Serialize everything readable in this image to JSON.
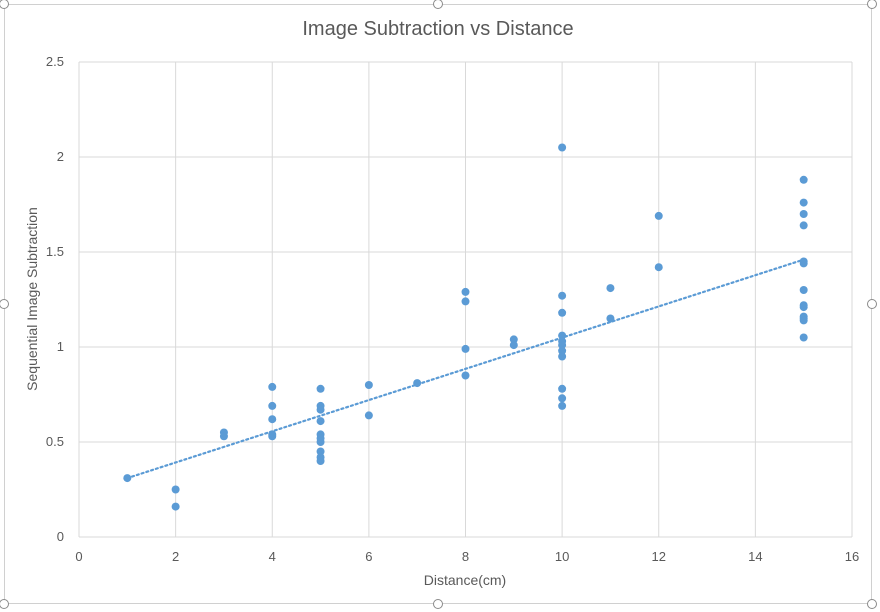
{
  "chart_data": {
    "type": "scatter",
    "title": "Image Subtraction vs Distance",
    "xlabel": "Distance(cm)",
    "ylabel": "Sequential Image Subtraction",
    "xlim": [
      0,
      16
    ],
    "ylim": [
      0,
      2.5
    ],
    "x_ticks": [
      0,
      2,
      4,
      6,
      8,
      10,
      12,
      14,
      16
    ],
    "y_ticks": [
      0,
      0.5,
      1,
      1.5,
      2,
      2.5
    ],
    "x_tick_labels": [
      "0",
      "2",
      "4",
      "6",
      "8",
      "10",
      "12",
      "14",
      "16"
    ],
    "y_tick_labels": [
      "0",
      "0.5",
      "1",
      "1.5",
      "2",
      "2.5"
    ],
    "grid": true,
    "legend": "none",
    "point_color": "#5b9bd5",
    "trendline": {
      "type": "linear",
      "style": "dotted",
      "color": "#5b9bd5",
      "x": [
        1,
        15
      ],
      "y": [
        0.31,
        1.46
      ]
    },
    "points": [
      [
        1,
        0.31
      ],
      [
        2,
        0.25
      ],
      [
        2,
        0.16
      ],
      [
        3,
        0.55
      ],
      [
        3,
        0.53
      ],
      [
        4,
        0.79
      ],
      [
        4,
        0.69
      ],
      [
        4,
        0.62
      ],
      [
        4,
        0.54
      ],
      [
        4,
        0.53
      ],
      [
        5,
        0.78
      ],
      [
        5,
        0.69
      ],
      [
        5,
        0.67
      ],
      [
        5,
        0.61
      ],
      [
        5,
        0.54
      ],
      [
        5,
        0.52
      ],
      [
        5,
        0.5
      ],
      [
        5,
        0.45
      ],
      [
        5,
        0.42
      ],
      [
        5,
        0.4
      ],
      [
        6,
        0.8
      ],
      [
        6,
        0.64
      ],
      [
        7,
        0.81
      ],
      [
        8,
        1.29
      ],
      [
        8,
        1.24
      ],
      [
        8,
        0.99
      ],
      [
        8,
        0.85
      ],
      [
        9,
        1.04
      ],
      [
        9,
        1.01
      ],
      [
        10,
        2.05
      ],
      [
        10,
        1.27
      ],
      [
        10,
        1.18
      ],
      [
        10,
        1.06
      ],
      [
        10,
        1.03
      ],
      [
        10,
        1.01
      ],
      [
        10,
        0.98
      ],
      [
        10,
        0.95
      ],
      [
        10,
        0.78
      ],
      [
        10,
        0.73
      ],
      [
        10,
        0.69
      ],
      [
        11,
        1.31
      ],
      [
        11,
        1.15
      ],
      [
        12,
        1.69
      ],
      [
        12,
        1.42
      ],
      [
        15,
        1.88
      ],
      [
        15,
        1.76
      ],
      [
        15,
        1.7
      ],
      [
        15,
        1.64
      ],
      [
        15,
        1.45
      ],
      [
        15,
        1.44
      ],
      [
        15,
        1.3
      ],
      [
        15,
        1.22
      ],
      [
        15,
        1.21
      ],
      [
        15,
        1.16
      ],
      [
        15,
        1.15
      ],
      [
        15,
        1.14
      ],
      [
        15,
        1.05
      ]
    ]
  }
}
